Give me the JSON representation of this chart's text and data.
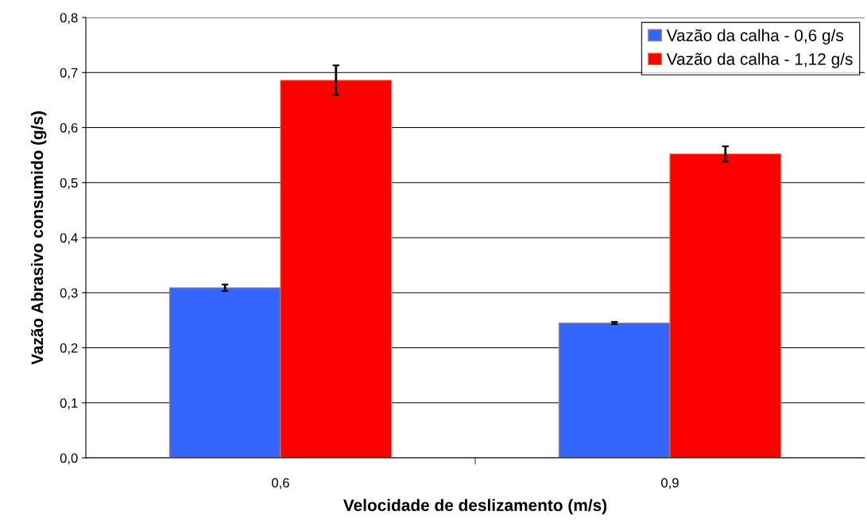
{
  "chart_data": {
    "type": "bar",
    "xlabel": "Velocidade de deslizamento (m/s)",
    "ylabel": "Vazão Abrasivo consumido (g/s)",
    "categories": [
      "0,6",
      "0,9"
    ],
    "series": [
      {
        "name": "Vazão da calha - 0,6 g/s",
        "color": "#3366ff",
        "values": [
          0.309,
          0.245
        ],
        "errors": [
          0.006,
          0.002
        ]
      },
      {
        "name": "Vazão da calha - 1,12 g/s",
        "color": "#ff0000",
        "values": [
          0.686,
          0.552
        ],
        "errors": [
          0.027,
          0.014
        ]
      }
    ],
    "ylim": [
      0,
      0.8
    ],
    "yticks": [
      {
        "value": 0,
        "label": "0,0"
      },
      {
        "value": 0.1,
        "label": "0,1"
      },
      {
        "value": 0.2,
        "label": "0,2"
      },
      {
        "value": 0.3,
        "label": "0,3"
      },
      {
        "value": 0.4,
        "label": "0,4"
      },
      {
        "value": 0.5,
        "label": "0,5"
      },
      {
        "value": 0.6,
        "label": "0,6"
      },
      {
        "value": 0.7,
        "label": "0,7"
      },
      {
        "value": 0.8,
        "label": "0,8"
      }
    ],
    "grid": "y",
    "legend": "top right"
  }
}
